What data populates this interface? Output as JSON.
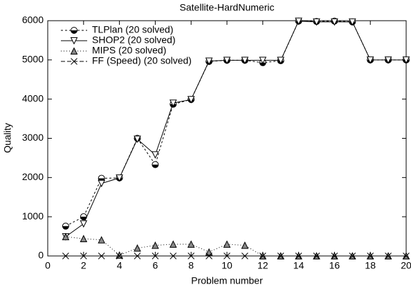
{
  "chart_data": {
    "type": "line",
    "title": "Satellite-HardNumeric",
    "x_label": "Problem number",
    "y_label": "Quality",
    "x": [
      1,
      2,
      3,
      4,
      5,
      6,
      7,
      8,
      9,
      10,
      11,
      12,
      13,
      14,
      15,
      16,
      17,
      18,
      19,
      20
    ],
    "xlim": [
      0,
      20
    ],
    "xticks": [
      0,
      2,
      4,
      6,
      8,
      10,
      12,
      14,
      16,
      18,
      20
    ],
    "ylim": [
      0,
      6000
    ],
    "yticks": [
      0,
      1000,
      2000,
      3000,
      4000,
      5000,
      6000
    ],
    "legend": "upper-left",
    "series": [
      {
        "name": "TLPlan (20 solved)",
        "color": "#000000",
        "marker": "circle",
        "dash": "3,3",
        "values": [
          760,
          1000,
          1980,
          1990,
          3000,
          2330,
          3870,
          3990,
          4960,
          4990,
          4990,
          4930,
          4980,
          5990,
          5980,
          5990,
          5970,
          5000,
          5000,
          5000
        ]
      },
      {
        "name": "SHOP2 (20 solved)",
        "color": "#000000",
        "marker": "triangle-down",
        "dash": "none",
        "values": [
          490,
          820,
          1850,
          1990,
          2980,
          2580,
          3900,
          3990,
          4970,
          4990,
          4990,
          4990,
          4990,
          5990,
          5970,
          5970,
          5970,
          5000,
          5000,
          5000
        ]
      },
      {
        "name": "MIPS (20 solved)",
        "color": "#888888",
        "marker": "triangle-up",
        "dash": "1,3",
        "values": [
          490,
          440,
          410,
          20,
          200,
          270,
          300,
          300,
          100,
          300,
          270,
          0,
          0,
          0,
          0,
          0,
          0,
          0,
          0,
          0
        ]
      },
      {
        "name": "FF (Speed) (20 solved)",
        "color": "#000000",
        "marker": "cross",
        "dash": "6,3",
        "values": [
          0,
          0,
          0,
          0,
          0,
          0,
          0,
          0,
          0,
          0,
          0,
          0,
          0,
          0,
          0,
          0,
          0,
          0,
          0,
          0
        ]
      }
    ]
  }
}
